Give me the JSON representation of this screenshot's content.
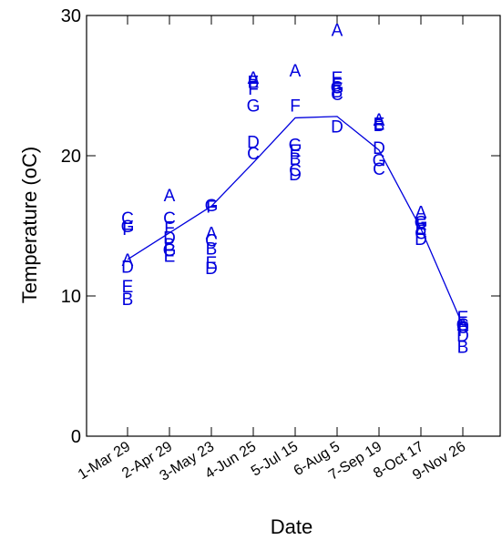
{
  "chart_data": {
    "type": "scatter",
    "title": "",
    "xlabel": "Date",
    "ylabel": "Temperature (oC)",
    "ylim": [
      0,
      30
    ],
    "yticks": [
      0,
      10,
      20,
      30
    ],
    "grid": false,
    "categories": [
      "1-Mar 29",
      "2-Apr 29",
      "3-May 23",
      "4-Jun 25",
      "5-Jul 15",
      "6-Aug 5",
      "7-Sep 19",
      "8-Oct 17",
      "9-Nov 26"
    ],
    "series": [
      {
        "name": "A",
        "values": [
          12.6,
          17.2,
          14.5,
          25.6,
          26.1,
          29.0,
          22.6,
          16.0,
          8.0
        ]
      },
      {
        "name": "B",
        "values": [
          9.8,
          13.7,
          13.4,
          25.3,
          19.8,
          24.6,
          22.2,
          14.8,
          6.4
        ]
      },
      {
        "name": "C",
        "values": [
          15.6,
          15.6,
          14.0,
          20.2,
          19.0,
          24.4,
          19.1,
          14.5,
          7.8
        ]
      },
      {
        "name": "D",
        "values": [
          12.1,
          14.2,
          12.0,
          21.0,
          18.7,
          22.1,
          20.6,
          14.1,
          7.2
        ]
      },
      {
        "name": "E",
        "values": [
          10.7,
          12.9,
          12.4,
          25.3,
          20.4,
          25.6,
          22.3,
          14.8,
          8.5
        ]
      },
      {
        "name": "F",
        "values": [
          14.8,
          14.9,
          16.4,
          24.8,
          23.6,
          25.1,
          22.3,
          15.1,
          7.6
        ]
      },
      {
        "name": "G",
        "values": [
          15.0,
          13.3,
          16.5,
          23.6,
          20.8,
          24.9,
          19.7,
          15.3,
          8.0
        ]
      }
    ],
    "mean_line": {
      "name": "",
      "values": [
        12.6,
        14.5,
        16.4,
        19.5,
        22.7,
        22.8,
        20.4,
        14.8,
        7.9
      ]
    },
    "colors": {
      "series": "#0000dd",
      "axes": "#000000"
    }
  }
}
